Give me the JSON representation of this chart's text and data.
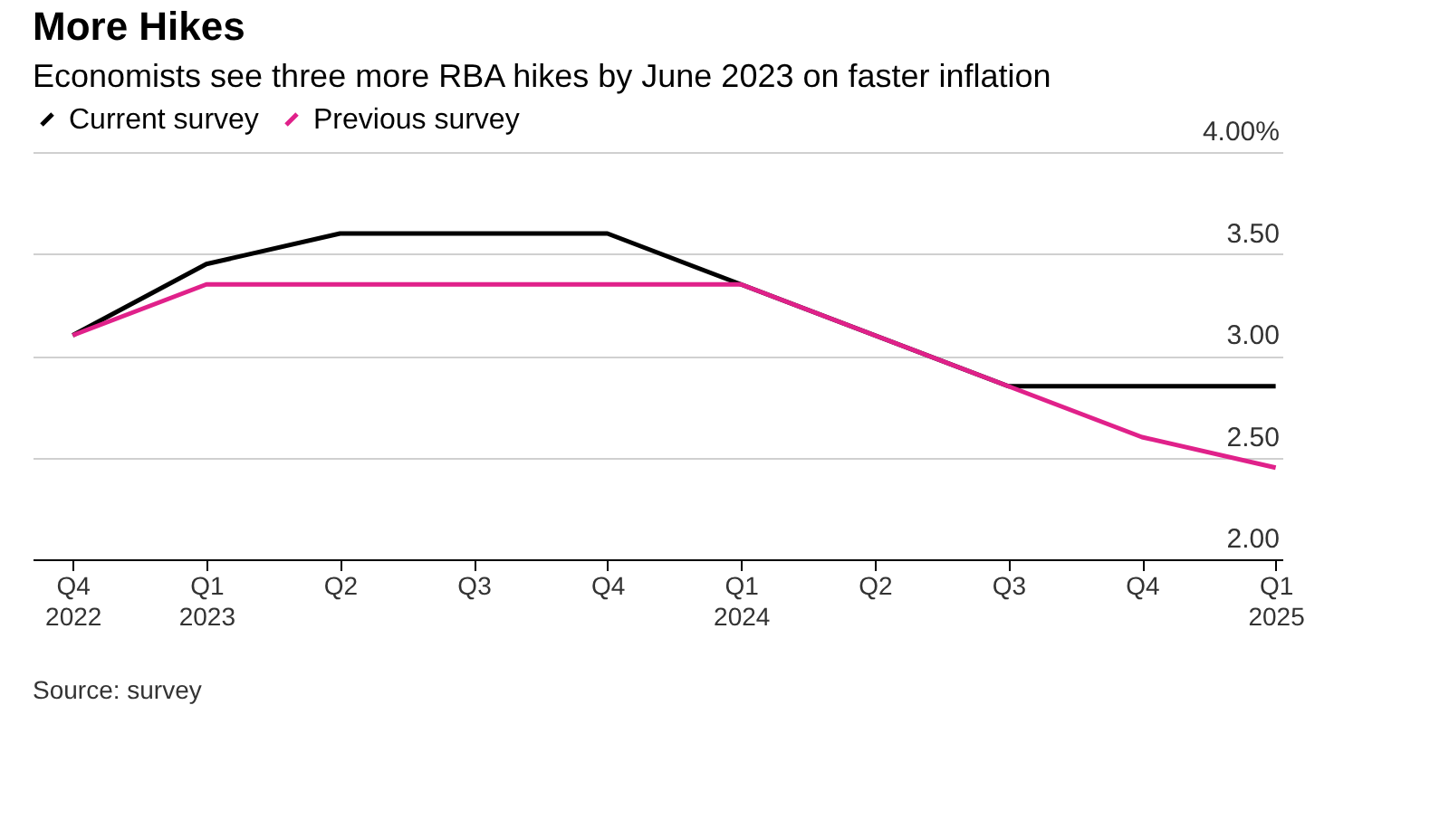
{
  "chart_data": {
    "type": "line",
    "title": "More Hikes",
    "subtitle": "Economists see three more RBA hikes by June 2023 on faster inflation",
    "categories": [
      "Q4 2022",
      "Q1 2023",
      "Q2",
      "Q3",
      "Q4",
      "Q1 2024",
      "Q2",
      "Q3",
      "Q4",
      "Q1 2025"
    ],
    "series": [
      {
        "name": "Current survey",
        "color": "#000000",
        "values": [
          3.1,
          3.45,
          3.6,
          3.6,
          3.6,
          3.35,
          3.1,
          2.85,
          2.85,
          2.85
        ]
      },
      {
        "name": "Previous survey",
        "color": "#e0218a",
        "values": [
          3.1,
          3.35,
          3.35,
          3.35,
          3.35,
          3.35,
          3.1,
          2.85,
          2.6,
          2.45
        ]
      }
    ],
    "ylim": [
      2,
      4
    ],
    "yticks": [
      {
        "value": 2,
        "label": "2.00"
      },
      {
        "value": 2.5,
        "label": "2.50"
      },
      {
        "value": 3,
        "label": "3.00"
      },
      {
        "value": 3.5,
        "label": "3.50"
      },
      {
        "value": 4,
        "label": "4.00%"
      }
    ],
    "grid": "y",
    "legend": "top left",
    "marker": "none",
    "line_style": "solid",
    "annotations": [
      "Source: survey"
    ]
  }
}
